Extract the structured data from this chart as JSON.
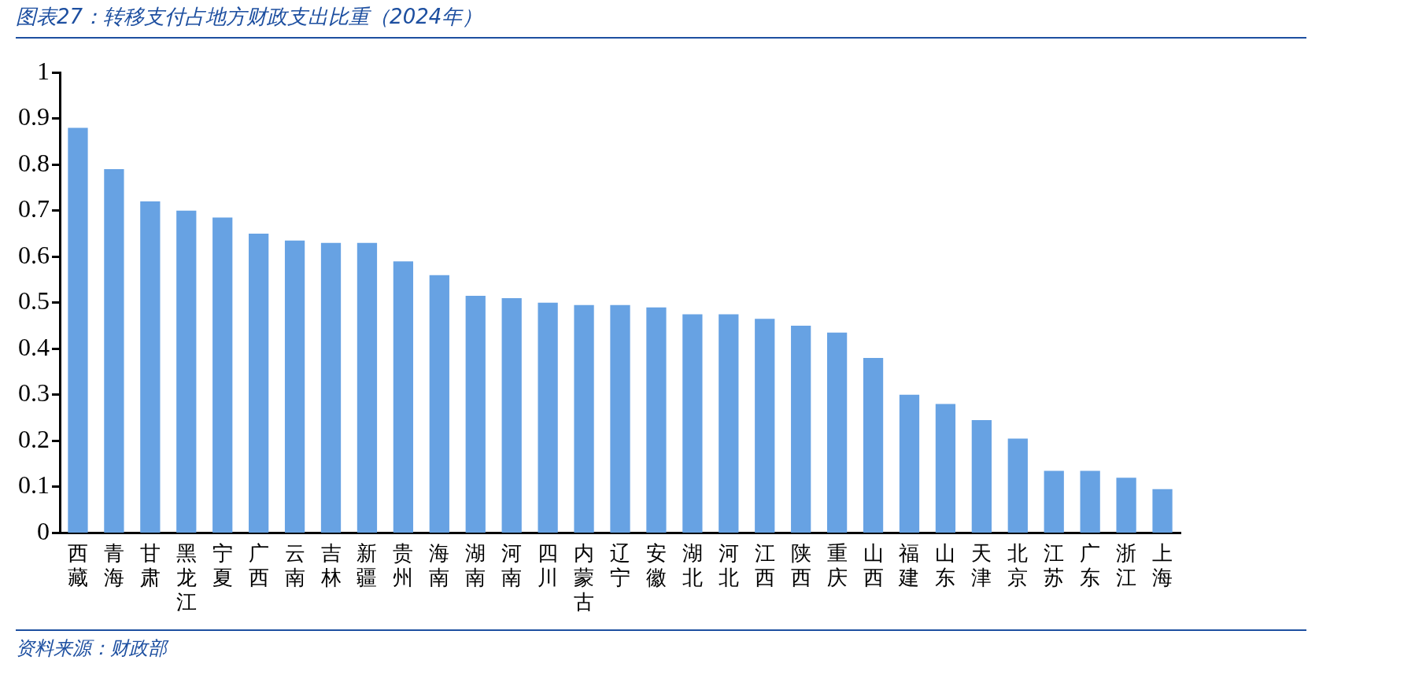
{
  "chart_data": {
    "type": "bar",
    "title": "图表27：转移支付占地方财政支出比重（2024年）",
    "categories": [
      "西藏",
      "青海",
      "甘肃",
      "黑龙江",
      "宁夏",
      "广西",
      "云南",
      "吉林",
      "新疆",
      "贵州",
      "海南",
      "湖南",
      "河南",
      "四川",
      "内蒙古",
      "辽宁",
      "安徽",
      "湖北",
      "河北",
      "江西",
      "陕西",
      "重庆",
      "山西",
      "福建",
      "山东",
      "天津",
      "北京",
      "江苏",
      "广东",
      "浙江",
      "上海"
    ],
    "values": [
      0.88,
      0.79,
      0.72,
      0.7,
      0.685,
      0.65,
      0.635,
      0.63,
      0.63,
      0.59,
      0.56,
      0.515,
      0.51,
      0.5,
      0.495,
      0.495,
      0.49,
      0.475,
      0.475,
      0.465,
      0.45,
      0.435,
      0.38,
      0.3,
      0.28,
      0.245,
      0.205,
      0.135,
      0.135,
      0.12,
      0.095
    ],
    "color": "#67a2e3",
    "ylim": [
      0,
      1
    ],
    "yticks": [
      0,
      0.1,
      0.2,
      0.3,
      0.4,
      0.5,
      0.6,
      0.7,
      0.8,
      0.9,
      1
    ],
    "grid": false,
    "legend": false,
    "annotations": [
      "资料来源：财政部"
    ]
  }
}
